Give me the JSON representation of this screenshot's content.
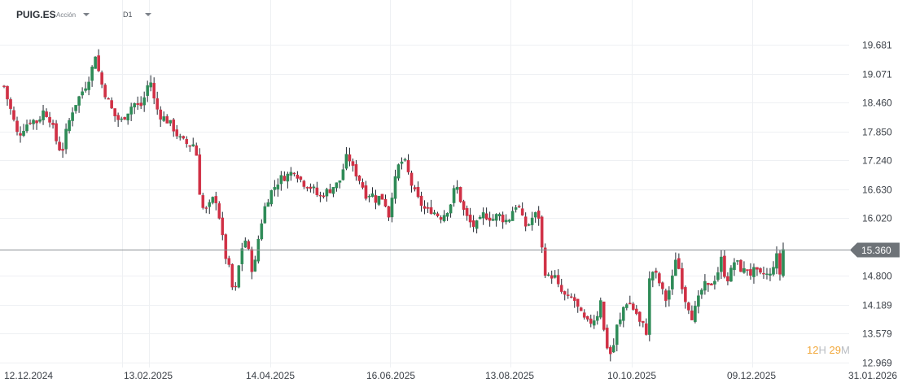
{
  "toolbar": {
    "symbol": "PUIG.ES",
    "symbol_type": "Acción",
    "timeframe": "D1"
  },
  "timer": {
    "hours": "12",
    "hours_unit": "H",
    "minutes": "29",
    "minutes_unit": "M"
  },
  "colors": {
    "up": "#2e8b57",
    "down": "#d03045",
    "price_line": "#8a8f95",
    "price_tag": "#6e7378",
    "grid": "#eef0f3"
  },
  "chart_data": {
    "type": "candlestick",
    "title": "",
    "timeframe": "D1",
    "y_ticks": [
      "19.681",
      "19.071",
      "18.460",
      "17.850",
      "17.240",
      "16.630",
      "16.020",
      "14.800",
      "14.189",
      "13.579",
      "12.969"
    ],
    "y_range": [
      12.969,
      19.681
    ],
    "x_ticks": [
      "12.12.2024",
      "13.02.2025",
      "14.04.2025",
      "16.06.2025",
      "13.08.2025",
      "10.10.2025",
      "09.12.2025",
      "31.01.2026"
    ],
    "current_price": "15.360",
    "grid": true,
    "close_path": [
      [
        0,
        19.15
      ],
      [
        8,
        18.6
      ],
      [
        15,
        18.2
      ],
      [
        22,
        17.75
      ],
      [
        30,
        17.95
      ],
      [
        38,
        18.1
      ],
      [
        46,
        18.05
      ],
      [
        54,
        18.3
      ],
      [
        62,
        18.1
      ],
      [
        70,
        17.6
      ],
      [
        76,
        17.4
      ],
      [
        82,
        17.9
      ],
      [
        90,
        18.35
      ],
      [
        98,
        18.6
      ],
      [
        106,
        18.85
      ],
      [
        112,
        19.1
      ],
      [
        118,
        19.55
      ],
      [
        122,
        19.0
      ],
      [
        128,
        18.7
      ],
      [
        134,
        18.45
      ],
      [
        140,
        18.2
      ],
      [
        148,
        18.05
      ],
      [
        156,
        18.25
      ],
      [
        164,
        18.45
      ],
      [
        172,
        18.35
      ],
      [
        178,
        18.6
      ],
      [
        184,
        19.0
      ],
      [
        190,
        18.45
      ],
      [
        196,
        18.2
      ],
      [
        204,
        18.1
      ],
      [
        212,
        17.95
      ],
      [
        220,
        17.7
      ],
      [
        228,
        17.6
      ],
      [
        236,
        17.55
      ],
      [
        240,
        17.65
      ],
      [
        243,
        16.95
      ],
      [
        247,
        16.3
      ],
      [
        252,
        16.15
      ],
      [
        258,
        16.3
      ],
      [
        264,
        16.5
      ],
      [
        268,
        16.2
      ],
      [
        272,
        15.75
      ],
      [
        276,
        15.25
      ],
      [
        280,
        15.1
      ],
      [
        284,
        14.65
      ],
      [
        288,
        14.35
      ],
      [
        292,
        14.85
      ],
      [
        296,
        15.3
      ],
      [
        300,
        15.6
      ],
      [
        304,
        15.45
      ],
      [
        308,
        15.0
      ],
      [
        312,
        14.9
      ],
      [
        316,
        15.45
      ],
      [
        320,
        15.85
      ],
      [
        326,
        16.3
      ],
      [
        332,
        16.55
      ],
      [
        338,
        16.7
      ],
      [
        344,
        16.85
      ],
      [
        350,
        16.9
      ],
      [
        356,
        16.95
      ],
      [
        362,
        17.05
      ],
      [
        368,
        16.85
      ],
      [
        374,
        16.75
      ],
      [
        380,
        16.7
      ],
      [
        386,
        16.6
      ],
      [
        392,
        16.45
      ],
      [
        398,
        16.55
      ],
      [
        404,
        16.6
      ],
      [
        410,
        16.7
      ],
      [
        416,
        16.75
      ],
      [
        420,
        16.95
      ],
      [
        424,
        17.25
      ],
      [
        428,
        17.35
      ],
      [
        432,
        17.1
      ],
      [
        438,
        16.95
      ],
      [
        444,
        16.75
      ],
      [
        450,
        16.5
      ],
      [
        456,
        16.55
      ],
      [
        462,
        16.4
      ],
      [
        468,
        16.5
      ],
      [
        474,
        16.3
      ],
      [
        478,
        16.05
      ],
      [
        482,
        16.6
      ],
      [
        486,
        16.85
      ],
      [
        490,
        17.15
      ],
      [
        496,
        17.25
      ],
      [
        500,
        17.05
      ],
      [
        506,
        16.7
      ],
      [
        512,
        16.45
      ],
      [
        518,
        16.3
      ],
      [
        524,
        16.15
      ],
      [
        530,
        16.2
      ],
      [
        536,
        16.1
      ],
      [
        542,
        16.05
      ],
      [
        548,
        16.15
      ],
      [
        554,
        16.35
      ],
      [
        560,
        16.75
      ],
      [
        564,
        16.5
      ],
      [
        570,
        16.15
      ],
      [
        576,
        15.95
      ],
      [
        582,
        15.85
      ],
      [
        588,
        15.9
      ],
      [
        594,
        16.1
      ],
      [
        600,
        16.05
      ],
      [
        606,
        16.0
      ],
      [
        612,
        16.1
      ],
      [
        618,
        16.0
      ],
      [
        624,
        15.95
      ],
      [
        630,
        16.2
      ],
      [
        636,
        16.35
      ],
      [
        640,
        16.05
      ],
      [
        646,
        15.85
      ],
      [
        650,
        15.9
      ],
      [
        656,
        16.1
      ],
      [
        662,
        16.05
      ],
      [
        668,
        14.95
      ],
      [
        674,
        14.75
      ],
      [
        680,
        14.85
      ],
      [
        686,
        14.55
      ],
      [
        692,
        14.4
      ],
      [
        698,
        14.3
      ],
      [
        704,
        14.35
      ],
      [
        710,
        14.1
      ],
      [
        716,
        13.9
      ],
      [
        722,
        13.8
      ],
      [
        728,
        13.85
      ],
      [
        734,
        14.0
      ],
      [
        738,
        14.35
      ],
      [
        742,
        13.6
      ],
      [
        746,
        13.3
      ],
      [
        750,
        13.15
      ],
      [
        754,
        13.35
      ],
      [
        758,
        13.75
      ],
      [
        762,
        13.85
      ],
      [
        766,
        14.15
      ],
      [
        770,
        14.25
      ],
      [
        774,
        14.2
      ],
      [
        778,
        14.1
      ],
      [
        782,
        14.0
      ],
      [
        786,
        13.8
      ],
      [
        790,
        13.75
      ],
      [
        794,
        13.62
      ],
      [
        798,
        14.75
      ],
      [
        802,
        14.9
      ],
      [
        806,
        14.8
      ],
      [
        810,
        14.65
      ],
      [
        814,
        14.45
      ],
      [
        818,
        14.3
      ],
      [
        822,
        14.5
      ],
      [
        826,
        14.75
      ],
      [
        830,
        15.2
      ],
      [
        834,
        14.95
      ],
      [
        838,
        14.6
      ],
      [
        842,
        14.3
      ],
      [
        846,
        14.15
      ],
      [
        850,
        13.95
      ],
      [
        854,
        14.1
      ],
      [
        858,
        14.3
      ],
      [
        862,
        14.5
      ],
      [
        866,
        14.6
      ],
      [
        870,
        14.55
      ],
      [
        874,
        14.65
      ],
      [
        878,
        14.75
      ],
      [
        882,
        14.9
      ],
      [
        886,
        15.15
      ],
      [
        890,
        14.85
      ],
      [
        894,
        14.75
      ],
      [
        898,
        14.9
      ],
      [
        902,
        15.1
      ],
      [
        906,
        15.05
      ],
      [
        910,
        14.95
      ],
      [
        914,
        14.9
      ],
      [
        918,
        14.95
      ],
      [
        922,
        14.85
      ],
      [
        926,
        14.9
      ],
      [
        930,
        14.85
      ],
      [
        934,
        14.8
      ],
      [
        938,
        14.85
      ],
      [
        942,
        14.82
      ],
      [
        946,
        14.8
      ],
      [
        950,
        15.05
      ],
      [
        954,
        15.2
      ],
      [
        958,
        14.85
      ],
      [
        962,
        15.36
      ]
    ]
  }
}
